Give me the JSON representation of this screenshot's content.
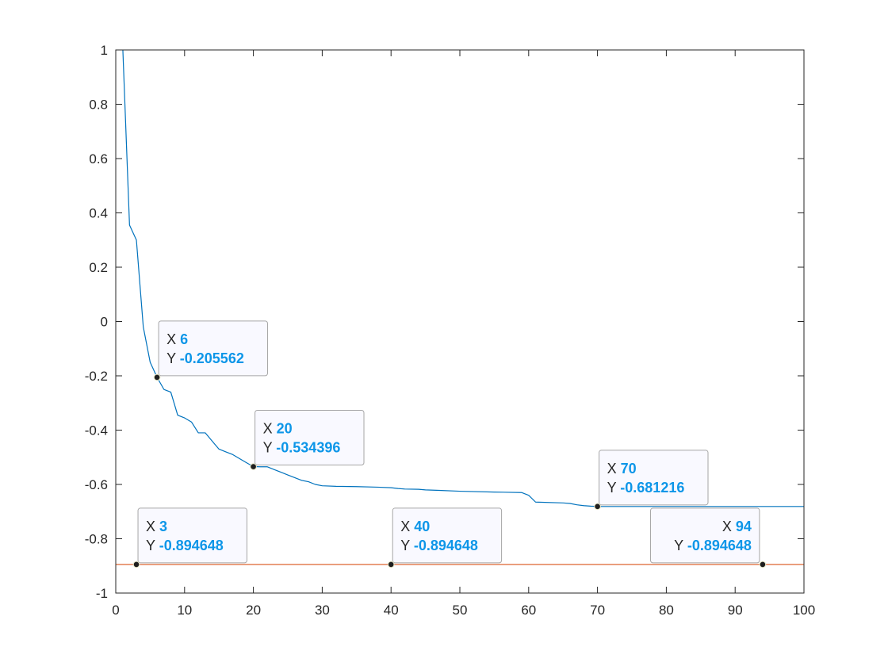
{
  "chart_data": {
    "type": "line",
    "title": "",
    "xlabel": "",
    "ylabel": "",
    "xlim": [
      0,
      100
    ],
    "ylim": [
      -1,
      1
    ],
    "grid": false,
    "box": true,
    "x_ticks": [
      "0",
      "10",
      "20",
      "30",
      "40",
      "50",
      "60",
      "70",
      "80",
      "90",
      "100"
    ],
    "y_ticks": [
      "1",
      "0.8",
      "0.6",
      "0.4",
      "0.2",
      "0",
      "-0.2",
      "-0.4",
      "-0.6",
      "-0.8",
      "-1"
    ],
    "series": [
      {
        "color": "#0072BD",
        "x": [
          1,
          2,
          3,
          4,
          5,
          6,
          7,
          8,
          9,
          10,
          11,
          12,
          13,
          14,
          15,
          16,
          17,
          18,
          19,
          20,
          21,
          22,
          23,
          24,
          25,
          26,
          27,
          28,
          29,
          30,
          32,
          35,
          38,
          40,
          41,
          42,
          44,
          45,
          47,
          50,
          55,
          59,
          60,
          61,
          65,
          66,
          67,
          68,
          69,
          70,
          75,
          80,
          85,
          90,
          95,
          100
        ],
        "y": [
          1.02,
          0.355,
          0.3,
          -0.02,
          -0.15,
          -0.205562,
          -0.25,
          -0.26,
          -0.345,
          -0.355,
          -0.37,
          -0.41,
          -0.41,
          -0.44,
          -0.47,
          -0.48,
          -0.49,
          -0.505,
          -0.52,
          -0.534396,
          -0.535,
          -0.535,
          -0.545,
          -0.555,
          -0.565,
          -0.575,
          -0.585,
          -0.59,
          -0.6,
          -0.605,
          -0.607,
          -0.608,
          -0.61,
          -0.612,
          -0.615,
          -0.617,
          -0.618,
          -0.62,
          -0.622,
          -0.625,
          -0.628,
          -0.63,
          -0.64,
          -0.665,
          -0.668,
          -0.67,
          -0.675,
          -0.678,
          -0.68,
          -0.681216,
          -0.6812,
          -0.6812,
          -0.6812,
          -0.6812,
          -0.6812,
          -0.6812
        ]
      },
      {
        "color": "#D95319",
        "x": [
          0,
          100
        ],
        "y": [
          -0.894648,
          -0.894648
        ]
      }
    ],
    "datatips": [
      {
        "x": 6,
        "y": -0.205562,
        "x_text": "6",
        "y_text": "-0.205562",
        "placement": "above-right",
        "align": "left",
        "series": 0
      },
      {
        "x": 20,
        "y": -0.534396,
        "x_text": "20",
        "y_text": "-0.534396",
        "placement": "above-right",
        "align": "left",
        "series": 0
      },
      {
        "x": 70,
        "y": -0.681216,
        "x_text": "70",
        "y_text": "-0.681216",
        "placement": "above-right",
        "align": "left",
        "series": 0
      },
      {
        "x": 3,
        "y": -0.894648,
        "x_text": "3",
        "y_text": "-0.894648",
        "placement": "above-right",
        "align": "left",
        "series": 1
      },
      {
        "x": 40,
        "y": -0.894648,
        "x_text": "40",
        "y_text": "-0.894648",
        "placement": "above-right",
        "align": "left",
        "series": 1
      },
      {
        "x": 94,
        "y": -0.894648,
        "x_text": "94",
        "y_text": "-0.894648",
        "placement": "above-left",
        "align": "right",
        "series": 1
      }
    ]
  }
}
